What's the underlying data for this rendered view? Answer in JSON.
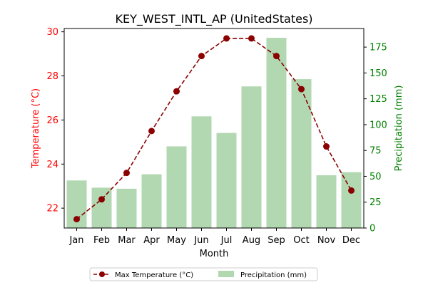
{
  "chart_data": {
    "type": "bar+line",
    "title": "KEY_WEST_INTL_AP (UnitedStates)",
    "xlabel": "Month",
    "categories": [
      "Jan",
      "Feb",
      "Mar",
      "Apr",
      "May",
      "Jun",
      "Jul",
      "Aug",
      "Sep",
      "Oct",
      "Nov",
      "Dec"
    ],
    "left_axis": {
      "label": "Temperature (°C)",
      "ylim": [
        21.1,
        30.15
      ],
      "ticks": [
        22,
        24,
        26,
        28,
        30
      ],
      "color": "#ff0000"
    },
    "right_axis": {
      "label": "Precipitation (mm)",
      "ylim": [
        0,
        193
      ],
      "ticks": [
        0,
        25,
        50,
        75,
        100,
        125,
        150,
        175
      ],
      "color": "#008000"
    },
    "series": [
      {
        "name": "Max Temperature (°C)",
        "kind": "line",
        "axis": "left",
        "color": "#8b0000",
        "values": [
          21.5,
          22.4,
          23.6,
          25.5,
          27.3,
          28.9,
          29.7,
          29.7,
          28.9,
          27.4,
          24.8,
          22.8
        ]
      },
      {
        "name": "Precipitation (mm)",
        "kind": "bar",
        "axis": "right",
        "color": "#b2d8b2",
        "values": [
          46,
          39,
          38,
          52,
          79,
          108,
          92,
          137,
          184,
          144,
          51,
          54
        ]
      }
    ],
    "legend": "bottom-center",
    "grid": false
  }
}
